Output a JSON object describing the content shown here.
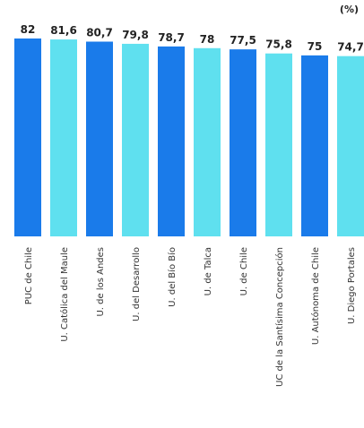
{
  "chart_data": {
    "type": "bar",
    "unit_label": "(%)",
    "categories": [
      "PUC de Chile",
      "U. Católica del Maule",
      "U. de los Andes",
      "U. del Desarrollo",
      "U. del Bío Bío",
      "U. de Talca",
      "U. de Chile",
      "UC de la Santísima Concepción",
      "U. Autónoma de Chile",
      "U. Diego Portales"
    ],
    "values": [
      82,
      81.6,
      80.7,
      79.8,
      78.7,
      78,
      77.5,
      75.8,
      75,
      74.7
    ],
    "value_labels": [
      "82",
      "81,6",
      "80,7",
      "79,8",
      "78,7",
      "78",
      "77,5",
      "75,8",
      "75",
      "74,7"
    ],
    "bar_colors": [
      "#1a7bea",
      "#5fe0ef",
      "#1a7bea",
      "#5fe0ef",
      "#1a7bea",
      "#5fe0ef",
      "#1a7bea",
      "#5fe0ef",
      "#1a7bea",
      "#5fe0ef"
    ],
    "ylim": [
      0,
      82
    ]
  }
}
